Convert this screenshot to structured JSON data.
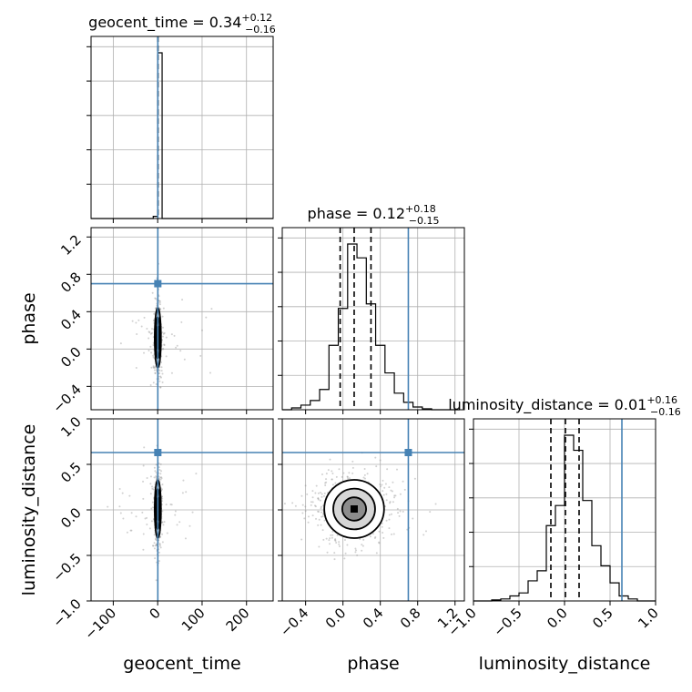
{
  "chart_data": {
    "type": "corner",
    "truth_color": "#4682b4",
    "parameters": [
      {
        "name": "geocent_time",
        "axis_label": "geocent_time",
        "title_main": "geocent_time = 0.34",
        "title_plus": "+0.12",
        "title_minus": "−0.16",
        "range": [
          -150,
          260
        ],
        "ticks": [
          -100,
          0,
          100,
          200
        ],
        "tick_labels": [
          "−100",
          "0",
          "100",
          "200"
        ],
        "truth": 0.34,
        "quantiles": [
          0.18,
          0.34,
          0.46
        ],
        "hist": {
          "edges": [
            -150,
            -130,
            -110,
            -90,
            -70,
            -50,
            -30,
            -10,
            0,
            10,
            20,
            40,
            60,
            80,
            100,
            120,
            140,
            160,
            180,
            200,
            220,
            240,
            260
          ],
          "counts": [
            0,
            0,
            0,
            0,
            0,
            0,
            0,
            2,
            155,
            0,
            0,
            0,
            0,
            0,
            0,
            0,
            0,
            0,
            0,
            0,
            0,
            0
          ]
        }
      },
      {
        "name": "phase",
        "axis_label": "phase",
        "title_main": "phase = 0.12",
        "title_plus": "+0.18",
        "title_minus": "−0.15",
        "range": [
          -0.65,
          1.3
        ],
        "ticks": [
          -0.4,
          0.0,
          0.4,
          0.8,
          1.2
        ],
        "tick_labels": [
          "−0.4",
          "0.0",
          "0.4",
          "0.8",
          "1.2"
        ],
        "truth": 0.7,
        "quantiles": [
          -0.03,
          0.12,
          0.3
        ],
        "hist": {
          "edges": [
            -0.65,
            -0.55,
            -0.45,
            -0.35,
            -0.25,
            -0.15,
            -0.05,
            0.05,
            0.15,
            0.25,
            0.35,
            0.45,
            0.55,
            0.65,
            0.75,
            0.85,
            0.95,
            1.05,
            1.15,
            1.25
          ],
          "counts": [
            0,
            2,
            5,
            10,
            22,
            70,
            110,
            180,
            165,
            115,
            70,
            40,
            18,
            8,
            3,
            1,
            0,
            0,
            0
          ]
        }
      },
      {
        "name": "luminosity_distance",
        "axis_label": "luminosity_distance",
        "title_main": "luminosity_distance = 0.01",
        "title_plus": "+0.16",
        "title_minus": "−0.16",
        "range": [
          -1.0,
          1.0
        ],
        "ticks": [
          -1.0,
          -0.5,
          0.0,
          0.5,
          1.0
        ],
        "tick_labels": [
          "−1.0",
          "−0.5",
          "0.0",
          "0.5",
          "1.0"
        ],
        "truth": 0.63,
        "quantiles": [
          -0.15,
          0.01,
          0.16
        ],
        "hist": {
          "edges": [
            -1.0,
            -0.9,
            -0.8,
            -0.7,
            -0.6,
            -0.5,
            -0.4,
            -0.3,
            -0.2,
            -0.1,
            0.0,
            0.1,
            0.2,
            0.3,
            0.4,
            0.5,
            0.6,
            0.7,
            0.8,
            0.9,
            1.0
          ],
          "counts": [
            0,
            0,
            1,
            2,
            5,
            8,
            20,
            30,
            75,
            95,
            165,
            150,
            100,
            55,
            35,
            18,
            5,
            2,
            0,
            0
          ]
        }
      }
    ],
    "contours": {
      "phase_vs_geocent_time": {
        "center": [
          0.34,
          0.12
        ],
        "sigma": [
          3.5,
          0.16
        ]
      },
      "luminosity_distance_vs_geocent_time": {
        "center": [
          0.34,
          0.01
        ],
        "sigma": [
          3.5,
          0.16
        ]
      },
      "luminosity_distance_vs_phase": {
        "center": [
          0.12,
          0.01
        ],
        "sigma": [
          0.16,
          0.16
        ]
      }
    }
  }
}
